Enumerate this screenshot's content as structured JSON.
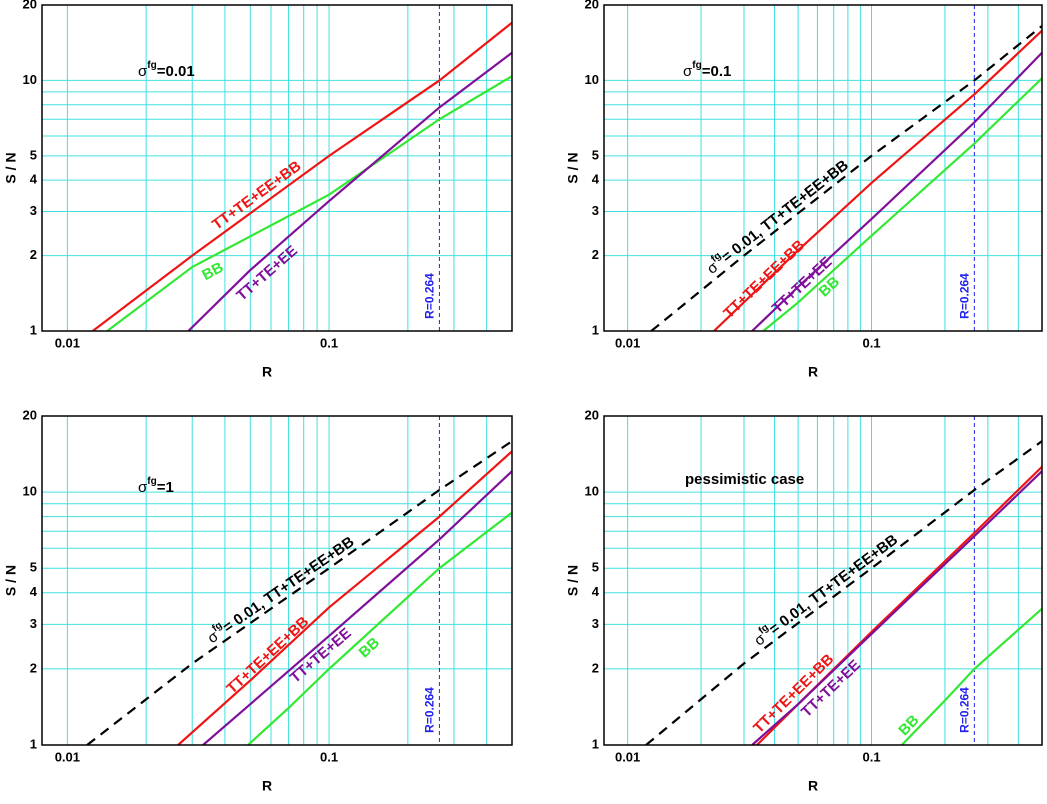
{
  "chart_data": [
    {
      "type": "line",
      "xlabel": "R",
      "ylabel": "S / N",
      "xscale": "log",
      "yscale": "log",
      "xlim": [
        0.008,
        0.5
      ],
      "ylim": [
        1,
        20
      ],
      "xticks": [
        0.01,
        0.1
      ],
      "yticks": [
        1,
        2,
        3,
        4,
        5,
        10,
        20
      ],
      "xminor": [
        0.02,
        0.03,
        0.04,
        0.05,
        0.06,
        0.07,
        0.08,
        0.09,
        0.2,
        0.3,
        0.4,
        0.5
      ],
      "yminor": [
        6,
        7,
        8,
        9
      ],
      "grid": true,
      "grid_color": "#40e0e0",
      "annotation": {
        "symbol": "σ",
        "superscript": "fg",
        "text": "=0.01"
      },
      "vline": {
        "value": 0.264,
        "label": "R=0.264",
        "color": "#2222ee"
      },
      "series": [
        {
          "name": "TT+TE+EE+BB",
          "color": "#f01414",
          "x": [
            0.0125,
            0.03,
            0.1,
            0.264,
            0.5
          ],
          "values": [
            1,
            2,
            5,
            10,
            17
          ]
        },
        {
          "name": "BB",
          "color": "#33e833",
          "x": [
            0.0142,
            0.03,
            0.1,
            0.264,
            0.5
          ],
          "values": [
            1,
            1.8,
            3.5,
            7,
            10.4
          ]
        },
        {
          "name": "TT+TE+EE",
          "color": "#80109a",
          "x": [
            0.029,
            0.05,
            0.1,
            0.264,
            0.5
          ],
          "values": [
            1,
            1.75,
            3.3,
            7.8,
            12.9
          ]
        }
      ]
    },
    {
      "type": "line",
      "xlabel": "R",
      "ylabel": "S / N",
      "xscale": "log",
      "yscale": "log",
      "xlim": [
        0.008,
        0.5
      ],
      "ylim": [
        1,
        20
      ],
      "xticks": [
        0.01,
        0.1
      ],
      "yticks": [
        1,
        2,
        3,
        4,
        5,
        10,
        20
      ],
      "xminor": [
        0.02,
        0.03,
        0.04,
        0.05,
        0.06,
        0.07,
        0.08,
        0.09,
        0.2,
        0.3,
        0.4,
        0.5
      ],
      "yminor": [
        6,
        7,
        8,
        9
      ],
      "grid": true,
      "grid_color": "#40e0e0",
      "annotation": {
        "symbol": "σ",
        "superscript": "fg",
        "text": "=0.1"
      },
      "vline": {
        "value": 0.264,
        "label": "R=0.264",
        "color": "#2222ee"
      },
      "series": [
        {
          "symbol": "σ",
          "superscript": "fg",
          "name": "= 0.01, TT+TE+EE+BB",
          "color": "#000000",
          "linestyle": "dashed",
          "x": [
            0.0125,
            0.03,
            0.1,
            0.264,
            0.5
          ],
          "values": [
            1,
            2,
            5,
            10,
            16.5
          ]
        },
        {
          "name": "TT+TE+EE+BB",
          "color": "#f01414",
          "x": [
            0.0226,
            0.05,
            0.1,
            0.264,
            0.5
          ],
          "values": [
            1,
            2.1,
            3.9,
            8.8,
            15.8
          ]
        },
        {
          "name": "TT+TE+EE",
          "color": "#80109a",
          "x": [
            0.0324,
            0.05,
            0.1,
            0.264,
            0.5
          ],
          "values": [
            1,
            1.5,
            2.8,
            6.8,
            12.9
          ]
        },
        {
          "name": "BB",
          "color": "#33e833",
          "x": [
            0.036,
            0.05,
            0.1,
            0.264,
            0.5
          ],
          "values": [
            1,
            1.3,
            2.4,
            5.6,
            10.2
          ]
        }
      ]
    },
    {
      "type": "line",
      "xlabel": "R",
      "ylabel": "S / N",
      "xscale": "log",
      "yscale": "log",
      "xlim": [
        0.008,
        0.5
      ],
      "ylim": [
        1,
        20
      ],
      "xticks": [
        0.01,
        0.1
      ],
      "yticks": [
        1,
        2,
        3,
        4,
        5,
        10,
        20
      ],
      "xminor": [
        0.02,
        0.03,
        0.04,
        0.05,
        0.06,
        0.07,
        0.08,
        0.09,
        0.2,
        0.3,
        0.4,
        0.5
      ],
      "yminor": [
        6,
        7,
        8,
        9
      ],
      "grid": true,
      "grid_color": "#40e0e0",
      "annotation": {
        "symbol": "σ",
        "superscript": "fg",
        "text": "=1"
      },
      "vline": {
        "value": 0.264,
        "label": "R=0.264",
        "color": "#2222ee"
      },
      "series": [
        {
          "symbol": "σ",
          "superscript": "fg",
          "name": "= 0.01, TT+TE+EE+BB",
          "color": "#000000",
          "linestyle": "dashed",
          "x": [
            0.0119,
            0.03,
            0.1,
            0.264,
            0.5
          ],
          "values": [
            1,
            2.1,
            5,
            10.2,
            15.9
          ]
        },
        {
          "name": "TT+TE+EE+BB",
          "color": "#f01414",
          "x": [
            0.0265,
            0.05,
            0.1,
            0.264,
            0.5
          ],
          "values": [
            1,
            1.8,
            3.5,
            8,
            14.5
          ]
        },
        {
          "name": "TT+TE+EE",
          "color": "#80109a",
          "x": [
            0.033,
            0.05,
            0.1,
            0.264,
            0.5
          ],
          "values": [
            1,
            1.45,
            2.7,
            6.5,
            12.1
          ]
        },
        {
          "name": "BB",
          "color": "#33e833",
          "x": [
            0.049,
            0.07,
            0.1,
            0.264,
            0.5
          ],
          "values": [
            1,
            1.4,
            2,
            5,
            8.3
          ]
        }
      ]
    },
    {
      "type": "line",
      "xlabel": "R",
      "ylabel": "S / N",
      "xscale": "log",
      "yscale": "log",
      "xlim": [
        0.008,
        0.5
      ],
      "ylim": [
        1,
        20
      ],
      "xticks": [
        0.01,
        0.1
      ],
      "yticks": [
        1,
        2,
        3,
        4,
        5,
        10,
        20
      ],
      "xminor": [
        0.02,
        0.03,
        0.04,
        0.05,
        0.06,
        0.07,
        0.08,
        0.09,
        0.2,
        0.3,
        0.4,
        0.5
      ],
      "yminor": [
        6,
        7,
        8,
        9
      ],
      "grid": true,
      "grid_color": "#40e0e0",
      "annotation": {
        "text": "pessimistic case"
      },
      "vline": {
        "value": 0.264,
        "label": "R=0.264",
        "color": "#2222ee"
      },
      "series": [
        {
          "symbol": "σ",
          "superscript": "fg",
          "name": "= 0.01, TT+TE+EE+BB",
          "color": "#000000",
          "linestyle": "dashed",
          "x": [
            0.0119,
            0.03,
            0.1,
            0.264,
            0.5
          ],
          "values": [
            1,
            2.1,
            5,
            10.2,
            15.9
          ]
        },
        {
          "name": "TT+TE+EE+BB",
          "color": "#f01414",
          "x": [
            0.0339,
            0.05,
            0.1,
            0.264,
            0.5
          ],
          "values": [
            1,
            1.45,
            2.8,
            6.9,
            12.6
          ]
        },
        {
          "name": "TT+TE+EE",
          "color": "#80109a",
          "x": [
            0.0324,
            0.05,
            0.1,
            0.264,
            0.5
          ],
          "values": [
            1,
            1.45,
            2.75,
            6.7,
            12.1
          ]
        },
        {
          "name": "BB",
          "color": "#33e833",
          "x": [
            0.133,
            0.2,
            0.264,
            0.5
          ],
          "values": [
            1,
            1.5,
            2,
            3.46
          ]
        }
      ]
    }
  ]
}
